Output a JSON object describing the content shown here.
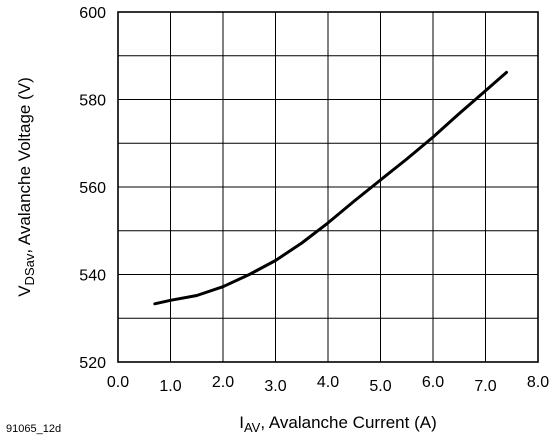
{
  "chart_data": {
    "type": "line",
    "title": "",
    "xlabel": {
      "main": "I",
      "sub": "AV",
      "rest": ", Avalanche Current (A)"
    },
    "ylabel": {
      "main": "V",
      "sub": "DSav",
      "rest": ", Avalanche Voltage (V)"
    },
    "xlim": [
      0,
      8
    ],
    "ylim": [
      520,
      600
    ],
    "x_ticks": [
      0,
      1,
      2,
      3,
      4,
      5,
      6,
      7,
      8
    ],
    "x_tick_labels": [
      "0.0",
      "1.0",
      "2.0",
      "3.0",
      "4.0",
      "5.0",
      "6.0",
      "7.0",
      "8.0"
    ],
    "y_ticks": [
      520,
      540,
      560,
      580,
      600
    ],
    "y_tick_labels": [
      "520",
      "540",
      "560",
      "580",
      "600"
    ],
    "grid": true,
    "series": [
      {
        "x": [
          0.7,
          1.0,
          1.5,
          2.0,
          2.5,
          3.0,
          3.5,
          4.0,
          4.5,
          5.0,
          5.5,
          6.0,
          6.5,
          7.0,
          7.4
        ],
        "y": [
          533.3,
          534.1,
          535.2,
          537.2,
          540.0,
          543.2,
          547.2,
          551.8,
          556.8,
          561.6,
          566.4,
          571.4,
          576.8,
          582.0,
          586.2
        ]
      }
    ],
    "figure_code": "91065_12d"
  }
}
